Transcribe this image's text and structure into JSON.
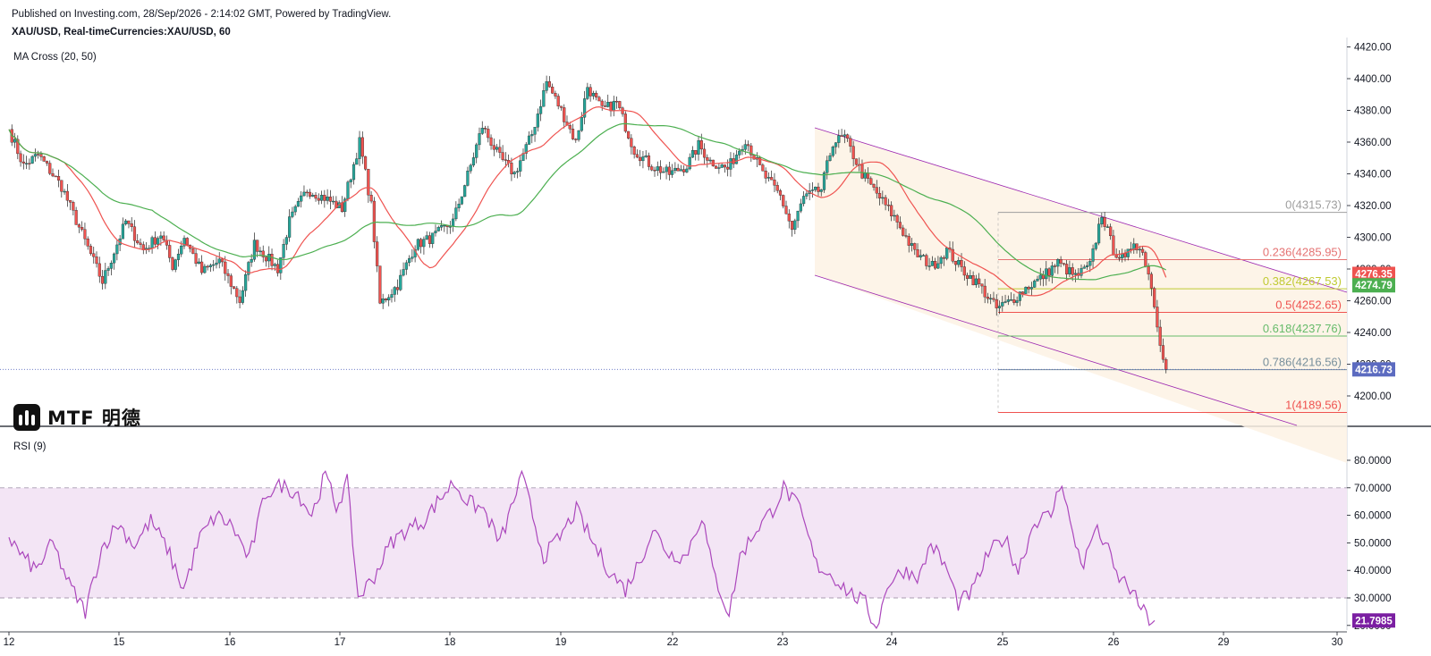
{
  "header": {
    "published": "Published on Investing.com, 28/Sep/2026 - 2:14:02 GMT, Powered by TradingView.",
    "symbol": "XAU/USD, Real-timeCurrencies:XAU/USD, 60"
  },
  "indicators": {
    "ma_label": "MA Cross (20, 50)",
    "rsi_label": "RSI (9)"
  },
  "logo": {
    "text": "MTF 明德"
  },
  "colors": {
    "up": "#26a69a",
    "down": "#ef5350",
    "ma_fast": "#ef5350",
    "ma_slow": "#4caf50",
    "channel_fill": "#fdf2e4",
    "channel_line": "#9c27b0",
    "rsi_line": "#ab47bc",
    "rsi_band": "#f3e5f5",
    "current_price_tag": "#5c6bc0"
  },
  "chart_data": [
    {
      "type": "candlestick",
      "symbol": "XAU/USD",
      "interval": "60",
      "ylim": [
        4180,
        4420
      ],
      "y_ticks": [
        "4200.00",
        "4220.00",
        "4240.00",
        "4260.00",
        "4280.00",
        "4300.00",
        "4320.00",
        "4340.00",
        "4360.00",
        "4380.00",
        "4400.00",
        "4420.00"
      ],
      "x_ticks": [
        "12",
        "15",
        "16",
        "17",
        "18",
        "19",
        "22",
        "23",
        "24",
        "25",
        "26",
        "29",
        "30"
      ],
      "keypoints_close": [
        [
          0,
          4368
        ],
        [
          5,
          4345
        ],
        [
          10,
          4352
        ],
        [
          18,
          4332
        ],
        [
          25,
          4302
        ],
        [
          32,
          4272
        ],
        [
          40,
          4310
        ],
        [
          46,
          4292
        ],
        [
          52,
          4302
        ],
        [
          56,
          4282
        ],
        [
          60,
          4300
        ],
        [
          66,
          4278
        ],
        [
          72,
          4285
        ],
        [
          79,
          4260
        ],
        [
          84,
          4296
        ],
        [
          92,
          4280
        ],
        [
          96,
          4310
        ],
        [
          102,
          4330
        ],
        [
          108,
          4325
        ],
        [
          114,
          4318
        ],
        [
          120,
          4360
        ],
        [
          124,
          4320
        ],
        [
          127,
          4258
        ],
        [
          133,
          4270
        ],
        [
          139,
          4295
        ],
        [
          145,
          4300
        ],
        [
          152,
          4310
        ],
        [
          158,
          4345
        ],
        [
          162,
          4370
        ],
        [
          168,
          4350
        ],
        [
          173,
          4340
        ],
        [
          179,
          4365
        ],
        [
          184,
          4398
        ],
        [
          189,
          4380
        ],
        [
          194,
          4360
        ],
        [
          198,
          4395
        ],
        [
          203,
          4380
        ],
        [
          208,
          4385
        ],
        [
          214,
          4355
        ],
        [
          220,
          4345
        ],
        [
          226,
          4340
        ],
        [
          232,
          4345
        ],
        [
          236,
          4358
        ],
        [
          240,
          4348
        ],
        [
          246,
          4343
        ],
        [
          252,
          4362
        ],
        [
          258,
          4340
        ],
        [
          264,
          4326
        ],
        [
          268,
          4305
        ],
        [
          272,
          4325
        ],
        [
          278,
          4330
        ],
        [
          282,
          4360
        ],
        [
          286,
          4363
        ],
        [
          292,
          4340
        ],
        [
          298,
          4325
        ],
        [
          304,
          4310
        ],
        [
          310,
          4290
        ],
        [
          316,
          4282
        ],
        [
          321,
          4292
        ],
        [
          326,
          4280
        ],
        [
          332,
          4270
        ],
        [
          338,
          4255
        ],
        [
          343,
          4260
        ],
        [
          348,
          4268
        ],
        [
          353,
          4274
        ],
        [
          359,
          4284
        ],
        [
          365,
          4275
        ],
        [
          370,
          4282
        ],
        [
          374,
          4315
        ],
        [
          378,
          4292
        ],
        [
          382,
          4285
        ],
        [
          385,
          4298
        ],
        [
          388,
          4290
        ],
        [
          390,
          4278
        ],
        [
          392,
          4258
        ],
        [
          394,
          4235
        ],
        [
          396,
          4216.73
        ]
      ],
      "last_price": "4216.73",
      "ma_fast_value": "4276.35",
      "ma_slow_value": "4274.79",
      "fibonacci": [
        {
          "level": "0",
          "price": 4315.73,
          "label": "0(4315.73)",
          "color": "#9e9e9e"
        },
        {
          "level": "0.236",
          "price": 4285.95,
          "label": "0.236(4285.95)",
          "color": "#e57373"
        },
        {
          "level": "0.382",
          "price": 4267.53,
          "label": "0.382(4267.53)",
          "color": "#c0ca33"
        },
        {
          "level": "0.5",
          "price": 4252.65,
          "label": "0.5(4252.65)",
          "color": "#ef5350"
        },
        {
          "level": "0.618",
          "price": 4237.76,
          "label": "0.618(4237.76)",
          "color": "#66bb6a"
        },
        {
          "level": "0.786",
          "price": 4216.56,
          "label": "0.786(4216.56)",
          "color": "#78909c"
        },
        {
          "level": "1",
          "price": 4189.56,
          "label": "1(4189.56)",
          "color": "#ef5350"
        }
      ]
    },
    {
      "type": "line",
      "name": "RSI (9)",
      "ylim": [
        18,
        82
      ],
      "y_ticks": [
        "20.0000",
        "30.0000",
        "40.0000",
        "50.0000",
        "60.0000",
        "70.0000",
        "80.0000"
      ],
      "overbought": 70,
      "oversold": 30,
      "last_value": "21.7985",
      "keypoints": [
        [
          0,
          52
        ],
        [
          5,
          45
        ],
        [
          10,
          40
        ],
        [
          16,
          50
        ],
        [
          22,
          35
        ],
        [
          28,
          25
        ],
        [
          34,
          48
        ],
        [
          40,
          57
        ],
        [
          46,
          49
        ],
        [
          52,
          58
        ],
        [
          58,
          48
        ],
        [
          64,
          33
        ],
        [
          70,
          52
        ],
        [
          76,
          60
        ],
        [
          82,
          56
        ],
        [
          88,
          44
        ],
        [
          94,
          68
        ],
        [
          100,
          71
        ],
        [
          106,
          68
        ],
        [
          111,
          60
        ],
        [
          116,
          75
        ],
        [
          120,
          63
        ],
        [
          124,
          72
        ],
        [
          128,
          30
        ],
        [
          134,
          38
        ],
        [
          140,
          50
        ],
        [
          146,
          55
        ],
        [
          152,
          58
        ],
        [
          158,
          66
        ],
        [
          163,
          72
        ],
        [
          168,
          65
        ],
        [
          174,
          62
        ],
        [
          180,
          50
        ],
        [
          184,
          62
        ],
        [
          188,
          75
        ],
        [
          192,
          60
        ],
        [
          196,
          45
        ],
        [
          202,
          52
        ],
        [
          208,
          62
        ],
        [
          214,
          50
        ],
        [
          220,
          40
        ],
        [
          226,
          33
        ],
        [
          232,
          45
        ],
        [
          236,
          55
        ],
        [
          242,
          46
        ],
        [
          248,
          45
        ],
        [
          254,
          60
        ],
        [
          258,
          40
        ],
        [
          264,
          24
        ],
        [
          268,
          45
        ],
        [
          274,
          55
        ],
        [
          280,
          62
        ],
        [
          284,
          70
        ],
        [
          290,
          62
        ],
        [
          296,
          42
        ],
        [
          302,
          38
        ],
        [
          308,
          32
        ],
        [
          314,
          28
        ],
        [
          318,
          18
        ],
        [
          322,
          35
        ],
        [
          328,
          40
        ],
        [
          334,
          38
        ],
        [
          338,
          50
        ],
        [
          344,
          40
        ],
        [
          348,
          28
        ],
        [
          353,
          32
        ],
        [
          359,
          46
        ],
        [
          365,
          52
        ],
        [
          370,
          40
        ],
        [
          376,
          58
        ],
        [
          382,
          60
        ],
        [
          386,
          73
        ],
        [
          390,
          52
        ],
        [
          394,
          42
        ],
        [
          398,
          55
        ],
        [
          402,
          50
        ],
        [
          406,
          38
        ],
        [
          410,
          35
        ],
        [
          414,
          28
        ],
        [
          418,
          22
        ],
        [
          420,
          21.8
        ]
      ]
    }
  ]
}
